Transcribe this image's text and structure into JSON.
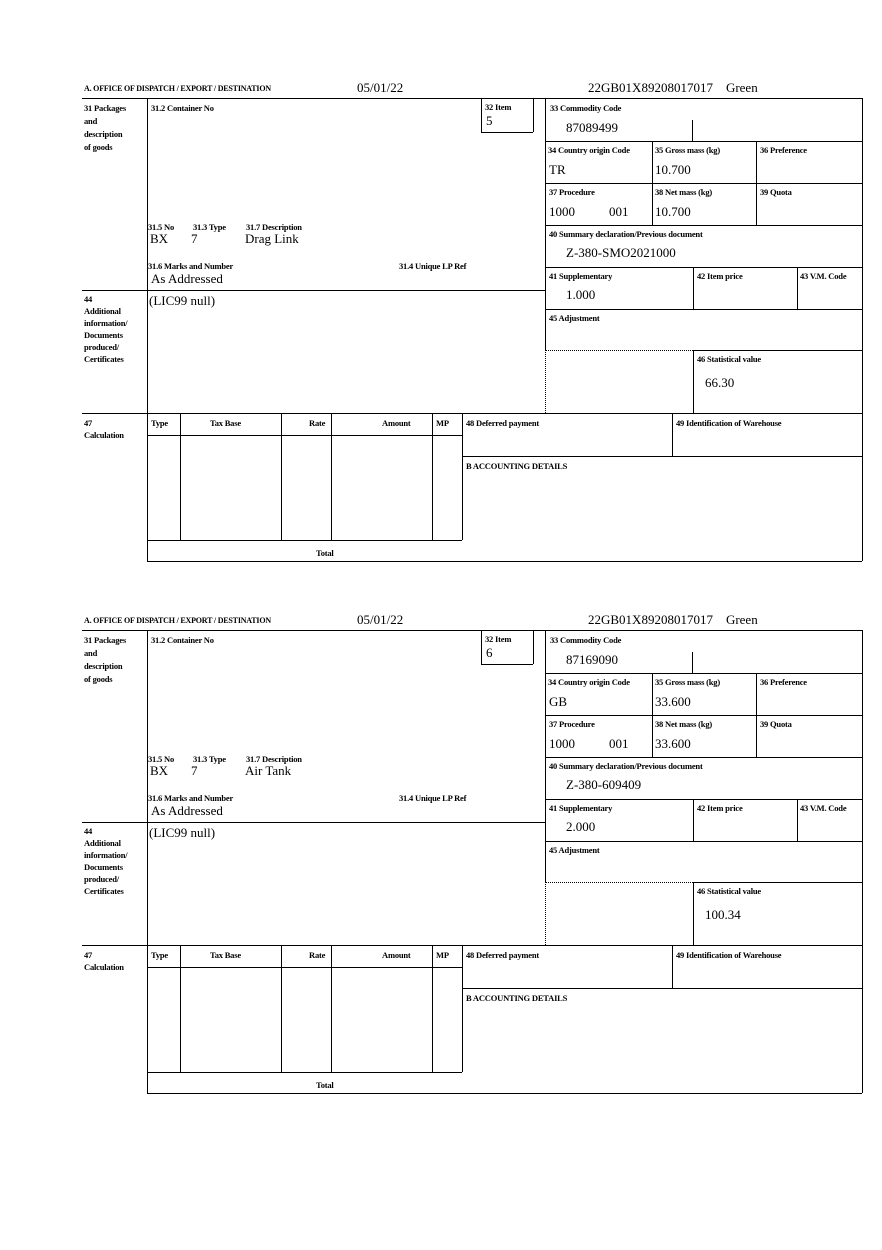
{
  "labels": {
    "office": "A.  OFFICE OF DISPATCH / EXPORT / DESTINATION",
    "l31": [
      "31 Packages",
      "and",
      "description",
      "of goods"
    ],
    "l31_2": "31.2 Container No",
    "l32": "32 Item",
    "l33": "33 Commodity Code",
    "l34": "34 Country origin Code",
    "l35": "35 Gross mass (kg)",
    "l36": "36 Preference",
    "l37": "37 Procedure",
    "l38": "38 Net mass (kg)",
    "l39": "39 Quota",
    "l40": "40 Summary declaration/Previous document",
    "l41": "41 Supplementary",
    "l42": "42 Item price",
    "l43": "43 V.M. Code",
    "l45": "45 Adjustment",
    "l46": "46 Statistical value",
    "l31_5": "31.5 No",
    "l31_3": "31.3 Type",
    "l31_7": "31.7 Description",
    "l31_6": "31.6 Marks and Number",
    "l31_4": "31.4 Unique LP Ref",
    "l44": [
      "44",
      "Additional",
      "information/",
      "Documents",
      "produced/",
      "Certificates"
    ],
    "l47": [
      "47",
      "Calculation"
    ],
    "calc_cols": [
      "Type",
      "Tax Base",
      "Rate",
      "Amount",
      "MP"
    ],
    "total": "Total",
    "l48": "48 Deferred payment",
    "l49": "49 Identification of Warehouse",
    "accounting": "B ACCOUNTING DETAILS"
  },
  "items": [
    {
      "date": "05/01/22",
      "reference": "22GB01X89208017017    Green",
      "item_no": "5",
      "commodity_code": "87089499",
      "country_origin": "TR",
      "gross_mass": "10.700",
      "procedure": "1000",
      "procedure_add": "001",
      "net_mass": "10.700",
      "previous_document": "Z-380-SMO2021000",
      "supplementary": "1.000",
      "statistical_value": "66.30",
      "package_kind": "BX",
      "package_count": "7",
      "description": "Drag Link",
      "marks": "As Addressed",
      "additional_info": "(LIC99 null)"
    },
    {
      "date": "05/01/22",
      "reference": "22GB01X89208017017    Green",
      "item_no": "6",
      "commodity_code": "87169090",
      "country_origin": "GB",
      "gross_mass": "33.600",
      "procedure": "1000",
      "procedure_add": "001",
      "net_mass": "33.600",
      "previous_document": "Z-380-609409",
      "supplementary": "2.000",
      "statistical_value": "100.34",
      "package_kind": "BX",
      "package_count": "7",
      "description": "Air Tank",
      "marks": "As Addressed",
      "additional_info": "(LIC99 null)"
    }
  ]
}
